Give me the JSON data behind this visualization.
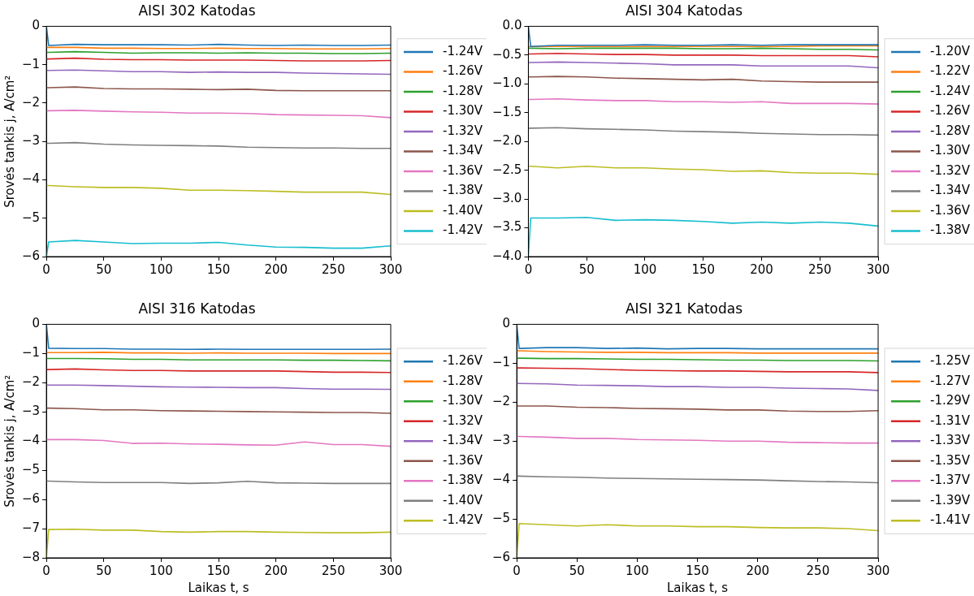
{
  "chart_data": [
    {
      "type": "line",
      "title": "AISI 302 Katodas",
      "ylabel": "Srovės tankis j, A/cm²",
      "legend": "right",
      "grid": false,
      "xlim": [
        0,
        300
      ],
      "xticks": [
        0,
        50,
        100,
        150,
        200,
        250,
        300
      ],
      "ylim": [
        -6,
        0
      ],
      "yticks": [
        -6,
        -5,
        -4,
        -3,
        -2,
        -1,
        0
      ],
      "x": [
        0,
        2,
        25,
        50,
        75,
        100,
        125,
        150,
        175,
        200,
        225,
        250,
        275,
        300
      ],
      "series": [
        {
          "name": "-1.24V",
          "color": "#1f77b4",
          "values": [
            0,
            -0.5,
            -0.47,
            -0.48,
            -0.48,
            -0.48,
            -0.49,
            -0.47,
            -0.49,
            -0.5,
            -0.49,
            -0.5,
            -0.5,
            -0.49
          ]
        },
        {
          "name": "-1.26V",
          "color": "#ff7f0e",
          "values": [
            -0.55,
            -0.55,
            -0.55,
            -0.57,
            -0.57,
            -0.58,
            -0.58,
            -0.57,
            -0.58,
            -0.58,
            -0.59,
            -0.59,
            -0.59,
            -0.58
          ]
        },
        {
          "name": "-1.28V",
          "color": "#2ca02c",
          "values": [
            -0.68,
            -0.68,
            -0.66,
            -0.68,
            -0.7,
            -0.69,
            -0.69,
            -0.7,
            -0.69,
            -0.7,
            -0.7,
            -0.71,
            -0.71,
            -0.7
          ]
        },
        {
          "name": "-1.30V",
          "color": "#d62728",
          "values": [
            -0.85,
            -0.85,
            -0.83,
            -0.86,
            -0.87,
            -0.87,
            -0.88,
            -0.88,
            -0.88,
            -0.89,
            -0.9,
            -0.9,
            -0.9,
            -0.89
          ]
        },
        {
          "name": "-1.32V",
          "color": "#9467bd",
          "values": [
            -1.15,
            -1.15,
            -1.14,
            -1.16,
            -1.18,
            -1.18,
            -1.2,
            -1.19,
            -1.2,
            -1.2,
            -1.22,
            -1.23,
            -1.24,
            -1.25
          ]
        },
        {
          "name": "-1.34V",
          "color": "#8c564b",
          "values": [
            -1.6,
            -1.6,
            -1.58,
            -1.62,
            -1.63,
            -1.63,
            -1.64,
            -1.65,
            -1.64,
            -1.67,
            -1.68,
            -1.68,
            -1.68,
            -1.68
          ]
        },
        {
          "name": "-1.36V",
          "color": "#e377c2",
          "values": [
            -2.2,
            -2.2,
            -2.19,
            -2.21,
            -2.23,
            -2.24,
            -2.26,
            -2.26,
            -2.27,
            -2.3,
            -2.31,
            -2.32,
            -2.33,
            -2.38
          ]
        },
        {
          "name": "-1.38V",
          "color": "#7f7f7f",
          "values": [
            -3.05,
            -3.05,
            -3.03,
            -3.07,
            -3.09,
            -3.1,
            -3.11,
            -3.12,
            -3.15,
            -3.16,
            -3.17,
            -3.17,
            -3.18,
            -3.18
          ]
        },
        {
          "name": "-1.40V",
          "color": "#bcbd22",
          "values": [
            -4.15,
            -4.15,
            -4.18,
            -4.2,
            -4.2,
            -4.22,
            -4.27,
            -4.27,
            -4.28,
            -4.3,
            -4.32,
            -4.32,
            -4.32,
            -4.38
          ]
        },
        {
          "name": "-1.42V",
          "color": "#17becf",
          "values": [
            -6,
            -5.62,
            -5.58,
            -5.62,
            -5.66,
            -5.65,
            -5.65,
            -5.63,
            -5.7,
            -5.75,
            -5.76,
            -5.78,
            -5.78,
            -5.72
          ]
        }
      ]
    },
    {
      "type": "line",
      "title": "AISI 304 Katodas",
      "legend": "right",
      "grid": false,
      "xlim": [
        0,
        300
      ],
      "xticks": [
        0,
        50,
        100,
        150,
        200,
        250,
        300
      ],
      "ylim": [
        -4,
        0
      ],
      "yticks": [
        {
          "value": -4,
          "label": "−4.0"
        },
        {
          "value": -3.5,
          "label": "−3.5"
        },
        {
          "value": -3,
          "label": "−3.0"
        },
        {
          "value": -2.5,
          "label": "−2.5"
        },
        {
          "value": -2,
          "label": "−2.0"
        },
        {
          "value": -1.5,
          "label": "−1.5"
        },
        {
          "value": -1,
          "label": "−1.0"
        },
        {
          "value": -0.5,
          "label": "−0.5"
        },
        {
          "value": 0,
          "label": "0.0"
        }
      ],
      "x": [
        0,
        2,
        25,
        50,
        75,
        100,
        125,
        150,
        175,
        200,
        225,
        250,
        275,
        300
      ],
      "series": [
        {
          "name": "-1.20V",
          "color": "#1f77b4",
          "values": [
            0,
            -0.35,
            -0.33,
            -0.33,
            -0.33,
            -0.32,
            -0.33,
            -0.33,
            -0.32,
            -0.33,
            -0.32,
            -0.32,
            -0.32,
            -0.32
          ]
        },
        {
          "name": "-1.22V",
          "color": "#ff7f0e",
          "values": [
            -0.35,
            -0.35,
            -0.35,
            -0.35,
            -0.35,
            -0.35,
            -0.35,
            -0.35,
            -0.35,
            -0.35,
            -0.35,
            -0.34,
            -0.34,
            -0.34
          ]
        },
        {
          "name": "-1.24V",
          "color": "#2ca02c",
          "values": [
            -0.38,
            -0.38,
            -0.39,
            -0.38,
            -0.38,
            -0.38,
            -0.38,
            -0.39,
            -0.39,
            -0.38,
            -0.39,
            -0.4,
            -0.4,
            -0.41
          ]
        },
        {
          "name": "-1.26V",
          "color": "#d62728",
          "values": [
            -0.48,
            -0.48,
            -0.47,
            -0.48,
            -0.49,
            -0.49,
            -0.5,
            -0.5,
            -0.5,
            -0.51,
            -0.51,
            -0.51,
            -0.51,
            -0.53
          ]
        },
        {
          "name": "-1.28V",
          "color": "#9467bd",
          "values": [
            -0.63,
            -0.63,
            -0.62,
            -0.63,
            -0.64,
            -0.65,
            -0.67,
            -0.67,
            -0.67,
            -0.69,
            -0.69,
            -0.69,
            -0.69,
            -0.72
          ]
        },
        {
          "name": "-1.30V",
          "color": "#8c564b",
          "values": [
            -0.88,
            -0.88,
            -0.87,
            -0.88,
            -0.9,
            -0.91,
            -0.92,
            -0.93,
            -0.92,
            -0.95,
            -0.96,
            -0.97,
            -0.97,
            -0.97
          ]
        },
        {
          "name": "-1.32V",
          "color": "#e377c2",
          "values": [
            -1.27,
            -1.27,
            -1.26,
            -1.28,
            -1.29,
            -1.29,
            -1.31,
            -1.31,
            -1.32,
            -1.31,
            -1.34,
            -1.34,
            -1.34,
            -1.35
          ]
        },
        {
          "name": "-1.34V",
          "color": "#7f7f7f",
          "values": [
            -1.77,
            -1.77,
            -1.76,
            -1.78,
            -1.79,
            -1.8,
            -1.82,
            -1.83,
            -1.84,
            -1.86,
            -1.87,
            -1.88,
            -1.88,
            -1.89
          ]
        },
        {
          "name": "-1.36V",
          "color": "#bcbd22",
          "values": [
            -2.43,
            -2.43,
            -2.46,
            -2.43,
            -2.46,
            -2.46,
            -2.48,
            -2.49,
            -2.52,
            -2.51,
            -2.54,
            -2.55,
            -2.55,
            -2.57
          ]
        },
        {
          "name": "-1.38V",
          "color": "#17becf",
          "values": [
            -4,
            -3.33,
            -3.33,
            -3.32,
            -3.37,
            -3.36,
            -3.37,
            -3.39,
            -3.42,
            -3.4,
            -3.42,
            -3.4,
            -3.42,
            -3.47
          ]
        }
      ]
    },
    {
      "type": "line",
      "title": "AISI 316 Katodas",
      "xlabel": "Laikas t, s",
      "ylabel": "Srovės tankis j, A/cm²",
      "legend": "right",
      "grid": false,
      "xlim": [
        0,
        300
      ],
      "xticks": [
        0,
        50,
        100,
        150,
        200,
        250,
        300
      ],
      "ylim": [
        -8,
        0
      ],
      "yticks": [
        -8,
        -7,
        -6,
        -5,
        -4,
        -3,
        -2,
        -1,
        0
      ],
      "x": [
        0,
        2,
        25,
        50,
        75,
        100,
        125,
        150,
        175,
        200,
        225,
        250,
        275,
        300
      ],
      "series": [
        {
          "name": "-1.26V",
          "color": "#1f77b4",
          "values": [
            0,
            -0.82,
            -0.83,
            -0.83,
            -0.85,
            -0.85,
            -0.86,
            -0.85,
            -0.86,
            -0.86,
            -0.86,
            -0.86,
            -0.86,
            -0.85
          ]
        },
        {
          "name": "-1.28V",
          "color": "#ff7f0e",
          "values": [
            -0.97,
            -0.97,
            -0.97,
            -0.96,
            -0.98,
            -0.98,
            -0.99,
            -0.98,
            -0.99,
            -0.99,
            -0.99,
            -1,
            -1,
            -1
          ]
        },
        {
          "name": "-1.30V",
          "color": "#2ca02c",
          "values": [
            -1.17,
            -1.17,
            -1.17,
            -1.18,
            -1.2,
            -1.2,
            -1.22,
            -1.22,
            -1.22,
            -1.22,
            -1.23,
            -1.23,
            -1.24,
            -1.25
          ]
        },
        {
          "name": "-1.32V",
          "color": "#d62728",
          "values": [
            -1.55,
            -1.55,
            -1.53,
            -1.56,
            -1.58,
            -1.58,
            -1.6,
            -1.6,
            -1.6,
            -1.6,
            -1.62,
            -1.64,
            -1.64,
            -1.65
          ]
        },
        {
          "name": "-1.34V",
          "color": "#9467bd",
          "values": [
            -2.08,
            -2.08,
            -2.08,
            -2.1,
            -2.12,
            -2.14,
            -2.15,
            -2.16,
            -2.17,
            -2.17,
            -2.2,
            -2.22,
            -2.22,
            -2.23
          ]
        },
        {
          "name": "-1.36V",
          "color": "#8c564b",
          "values": [
            -2.87,
            -2.87,
            -2.89,
            -2.93,
            -2.93,
            -2.96,
            -2.97,
            -2.98,
            -2.99,
            -3,
            -3.01,
            -3.02,
            -3.02,
            -3.05
          ]
        },
        {
          "name": "-1.38V",
          "color": "#e377c2",
          "values": [
            -3.95,
            -3.95,
            -3.95,
            -3.98,
            -4.08,
            -4.07,
            -4.1,
            -4.11,
            -4.13,
            -4.14,
            -4.03,
            -4.12,
            -4.12,
            -4.18
          ]
        },
        {
          "name": "-1.40V",
          "color": "#7f7f7f",
          "values": [
            -5.37,
            -5.37,
            -5.4,
            -5.42,
            -5.42,
            -5.42,
            -5.45,
            -5.43,
            -5.38,
            -5.43,
            -5.44,
            -5.45,
            -5.45,
            -5.45
          ]
        },
        {
          "name": "-1.42V",
          "color": "#bcbd22",
          "values": [
            -8,
            -7.03,
            -7.02,
            -7.05,
            -7.05,
            -7.1,
            -7.12,
            -7.1,
            -7.1,
            -7.12,
            -7.13,
            -7.14,
            -7.14,
            -7.12
          ]
        }
      ]
    },
    {
      "type": "line",
      "title": "AISI 321 Katodas",
      "xlabel": "Laikas t, s",
      "legend": "right",
      "grid": false,
      "xlim": [
        0,
        300
      ],
      "xticks": [
        0,
        50,
        100,
        150,
        200,
        250,
        300
      ],
      "ylim": [
        -6,
        0
      ],
      "yticks": [
        -6,
        -5,
        -4,
        -3,
        -2,
        -1,
        0
      ],
      "x": [
        0,
        2,
        25,
        50,
        75,
        100,
        125,
        150,
        175,
        200,
        225,
        250,
        275,
        300
      ],
      "series": [
        {
          "name": "-1.25V",
          "color": "#1f77b4",
          "values": [
            0,
            -0.62,
            -0.6,
            -0.6,
            -0.62,
            -0.61,
            -0.63,
            -0.62,
            -0.62,
            -0.63,
            -0.63,
            -0.63,
            -0.63,
            -0.63
          ]
        },
        {
          "name": "-1.27V",
          "color": "#ff7f0e",
          "values": [
            -0.68,
            -0.68,
            -0.7,
            -0.71,
            -0.72,
            -0.72,
            -0.73,
            -0.73,
            -0.73,
            -0.74,
            -0.74,
            -0.74,
            -0.74,
            -0.74
          ]
        },
        {
          "name": "-1.29V",
          "color": "#2ca02c",
          "values": [
            -0.87,
            -0.87,
            -0.88,
            -0.88,
            -0.89,
            -0.9,
            -0.9,
            -0.91,
            -0.92,
            -0.92,
            -0.93,
            -0.93,
            -0.93,
            -0.94
          ]
        },
        {
          "name": "-1.31V",
          "color": "#d62728",
          "values": [
            -1.12,
            -1.12,
            -1.13,
            -1.14,
            -1.16,
            -1.18,
            -1.19,
            -1.2,
            -1.2,
            -1.21,
            -1.22,
            -1.22,
            -1.22,
            -1.24
          ]
        },
        {
          "name": "-1.33V",
          "color": "#9467bd",
          "values": [
            -1.52,
            -1.52,
            -1.53,
            -1.56,
            -1.57,
            -1.58,
            -1.6,
            -1.6,
            -1.62,
            -1.62,
            -1.64,
            -1.65,
            -1.66,
            -1.7
          ]
        },
        {
          "name": "-1.35V",
          "color": "#8c564b",
          "values": [
            -2.1,
            -2.1,
            -2.1,
            -2.13,
            -2.14,
            -2.16,
            -2.17,
            -2.18,
            -2.2,
            -2.2,
            -2.23,
            -2.24,
            -2.24,
            -2.22
          ]
        },
        {
          "name": "-1.37V",
          "color": "#e377c2",
          "values": [
            -2.88,
            -2.88,
            -2.9,
            -2.93,
            -2.93,
            -2.96,
            -2.97,
            -2.98,
            -3,
            -3,
            -3.03,
            -3.04,
            -3.05,
            -3.05
          ]
        },
        {
          "name": "-1.39V",
          "color": "#7f7f7f",
          "values": [
            -3.9,
            -3.9,
            -3.92,
            -3.93,
            -3.95,
            -3.96,
            -3.97,
            -3.98,
            -3.99,
            -4,
            -4.02,
            -4.04,
            -4.05,
            -4.07
          ]
        },
        {
          "name": "-1.41V",
          "color": "#bcbd22",
          "values": [
            -6,
            -5.12,
            -5.15,
            -5.18,
            -5.15,
            -5.18,
            -5.18,
            -5.2,
            -5.2,
            -5.22,
            -5.23,
            -5.23,
            -5.25,
            -5.3
          ]
        }
      ]
    }
  ]
}
